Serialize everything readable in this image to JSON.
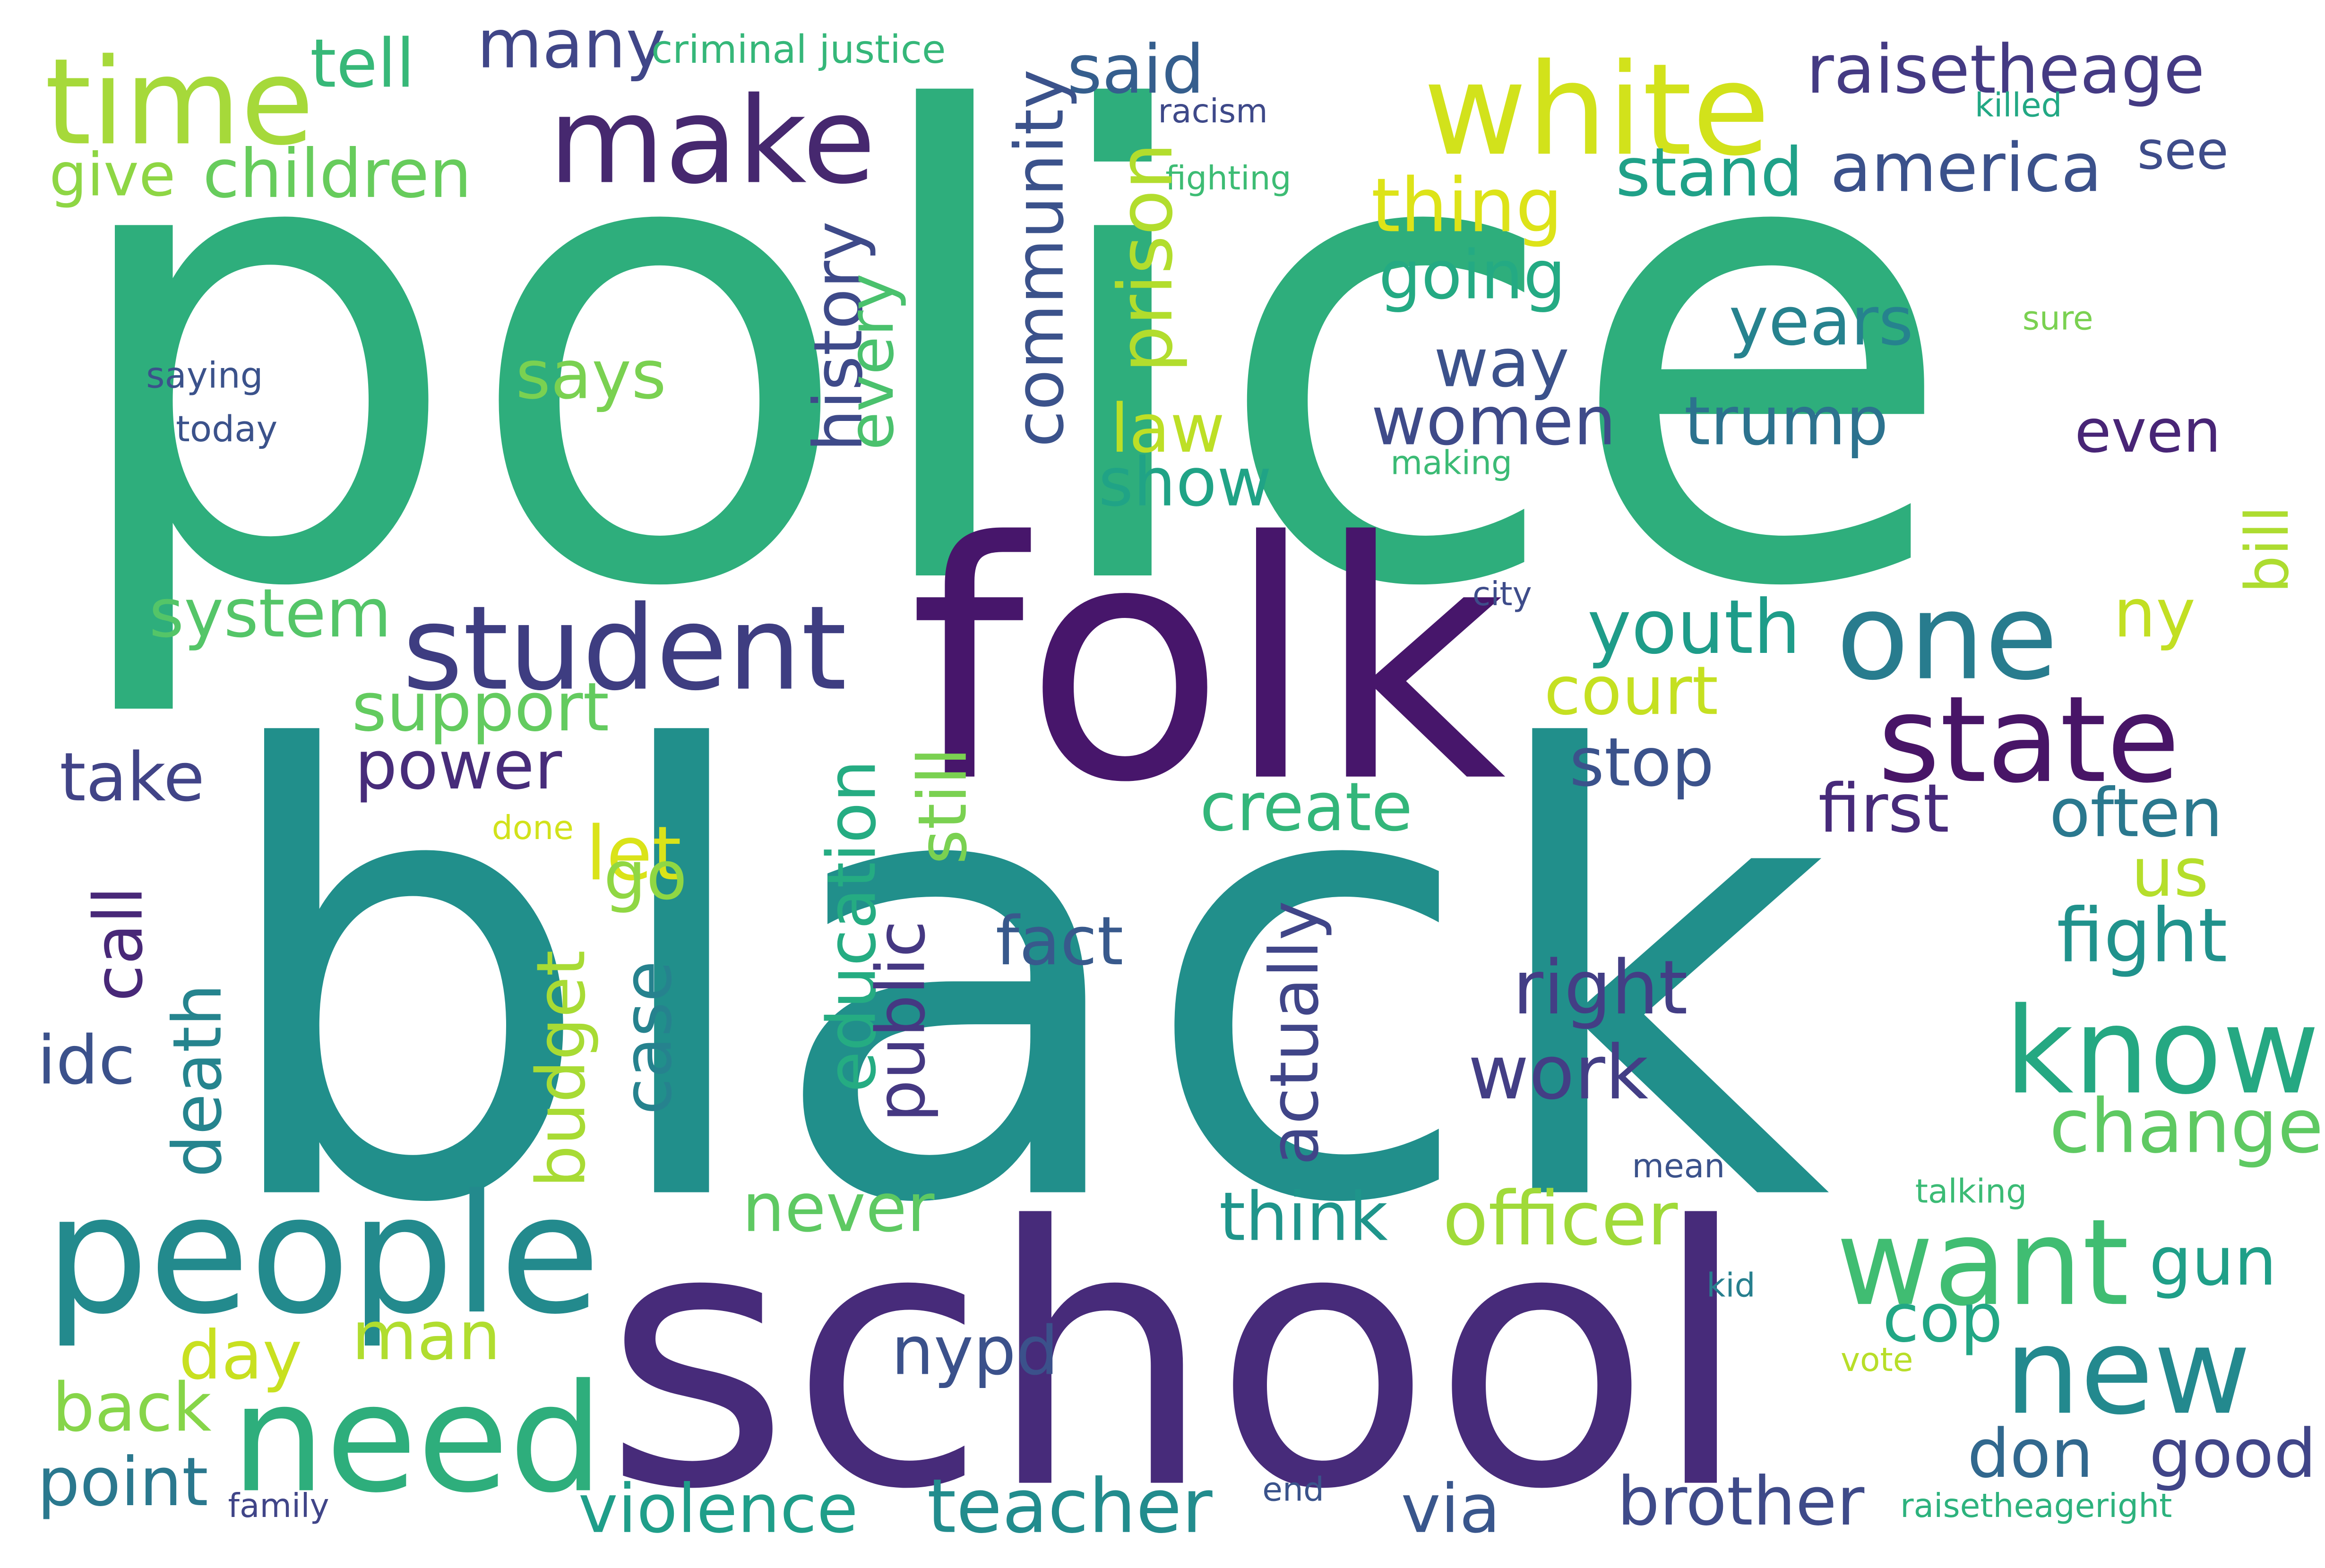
{
  "words": [
    {
      "text": "police",
      "color": "#2eae7c"
    },
    {
      "text": "black",
      "color": "#218f8b"
    },
    {
      "text": "folk",
      "color": "#47166b"
    },
    {
      "text": "school",
      "color": "#472b7a"
    },
    {
      "text": "people",
      "color": "#238a8d"
    },
    {
      "text": "need",
      "color": "#2eae7c"
    },
    {
      "text": "student",
      "color": "#3e3d81"
    },
    {
      "text": "make",
      "color": "#46286f"
    },
    {
      "text": "time",
      "color": "#a6d93a"
    },
    {
      "text": "white",
      "color": "#d2e21b"
    },
    {
      "text": "state",
      "color": "#481567"
    },
    {
      "text": "one",
      "color": "#287c8e"
    },
    {
      "text": "know",
      "color": "#25a882"
    },
    {
      "text": "want",
      "color": "#40bd72"
    },
    {
      "text": "new",
      "color": "#23898e"
    },
    {
      "text": "raisetheage",
      "color": "#443a83"
    },
    {
      "text": "america",
      "color": "#3b518b"
    },
    {
      "text": "said",
      "color": "#355e8d"
    },
    {
      "text": "many",
      "color": "#404688"
    },
    {
      "text": "tell",
      "color": "#37b878"
    },
    {
      "text": "children",
      "color": "#67cc5c"
    },
    {
      "text": "give",
      "color": "#8ed644"
    },
    {
      "text": "criminal justice",
      "color": "#35b779"
    },
    {
      "text": "racism",
      "color": "#3e4989"
    },
    {
      "text": "killed",
      "color": "#22a884"
    },
    {
      "text": "fighting",
      "color": "#3dbc74"
    },
    {
      "text": "see",
      "color": "#3e4c8a"
    },
    {
      "text": "stand",
      "color": "#1fa188"
    },
    {
      "text": "thing",
      "color": "#dde318"
    },
    {
      "text": "going",
      "color": "#24aa83"
    },
    {
      "text": "years",
      "color": "#26828e"
    },
    {
      "text": "sure",
      "color": "#7ad151"
    },
    {
      "text": "way",
      "color": "#3b518b"
    },
    {
      "text": "trump",
      "color": "#2c728e"
    },
    {
      "text": "women",
      "color": "#3e4a89"
    },
    {
      "text": "even",
      "color": "#482576"
    },
    {
      "text": "making",
      "color": "#3bbb75"
    },
    {
      "text": "law",
      "color": "#bddf26"
    },
    {
      "text": "show",
      "color": "#20a386"
    },
    {
      "text": "says",
      "color": "#7ad151"
    },
    {
      "text": "saying",
      "color": "#3b528b"
    },
    {
      "text": "today",
      "color": "#3b528b"
    },
    {
      "text": "system",
      "color": "#54c568"
    },
    {
      "text": "youth",
      "color": "#1e9c89"
    },
    {
      "text": "ny",
      "color": "#c2df23"
    },
    {
      "text": "city",
      "color": "#3e4c8a"
    },
    {
      "text": "support",
      "color": "#63cb5f"
    },
    {
      "text": "court",
      "color": "#c5e021"
    },
    {
      "text": "power",
      "color": "#472c7a"
    },
    {
      "text": "take",
      "color": "#414487"
    },
    {
      "text": "stop",
      "color": "#3b528b"
    },
    {
      "text": "create",
      "color": "#33b67a"
    },
    {
      "text": "first",
      "color": "#472a7a"
    },
    {
      "text": "often",
      "color": "#2a788e"
    },
    {
      "text": "let",
      "color": "#dae319"
    },
    {
      "text": "go",
      "color": "#90d743"
    },
    {
      "text": "done",
      "color": "#d2e21b"
    },
    {
      "text": "us",
      "color": "#b5de2b"
    },
    {
      "text": "fact",
      "color": "#38598c"
    },
    {
      "text": "fight",
      "color": "#20928c"
    },
    {
      "text": "right",
      "color": "#433e85"
    },
    {
      "text": "work",
      "color": "#433e85"
    },
    {
      "text": "idc",
      "color": "#3b518b"
    },
    {
      "text": "change",
      "color": "#5ec962"
    },
    {
      "text": "mean",
      "color": "#3b528b"
    },
    {
      "text": "talking",
      "color": "#3bbb75"
    },
    {
      "text": "never",
      "color": "#5ec962"
    },
    {
      "text": "think",
      "color": "#1f958b"
    },
    {
      "text": "officer",
      "color": "#a0da39"
    },
    {
      "text": "gun",
      "color": "#1f9f88"
    },
    {
      "text": "cop",
      "color": "#22a785"
    },
    {
      "text": "kid",
      "color": "#277f8e"
    },
    {
      "text": "day",
      "color": "#c8e020"
    },
    {
      "text": "man",
      "color": "#b0dd2f"
    },
    {
      "text": "nypd",
      "color": "#3b518b"
    },
    {
      "text": "back",
      "color": "#86d549"
    },
    {
      "text": "vote",
      "color": "#b8de29"
    },
    {
      "text": "don",
      "color": "#31688e"
    },
    {
      "text": "good",
      "color": "#404588"
    },
    {
      "text": "point",
      "color": "#2a788e"
    },
    {
      "text": "family",
      "color": "#404588"
    },
    {
      "text": "violence",
      "color": "#1f9e89"
    },
    {
      "text": "teacher",
      "color": "#228c8d"
    },
    {
      "text": "via",
      "color": "#39568c"
    },
    {
      "text": "end",
      "color": "#3a538b"
    },
    {
      "text": "brother",
      "color": "#3e4a89"
    },
    {
      "text": "raisetheageright",
      "color": "#2db27d"
    },
    {
      "text": "community",
      "color": "#3b528b"
    },
    {
      "text": "history",
      "color": "#3e4a89"
    },
    {
      "text": "every",
      "color": "#4ac16d"
    },
    {
      "text": "prison",
      "color": "#b2dd2d"
    },
    {
      "text": "bill",
      "color": "#addc30"
    },
    {
      "text": "education",
      "color": "#25ac82"
    },
    {
      "text": "public",
      "color": "#453882"
    },
    {
      "text": "still",
      "color": "#7ad151"
    },
    {
      "text": "call",
      "color": "#482878"
    },
    {
      "text": "death",
      "color": "#25848e"
    },
    {
      "text": "budget",
      "color": "#a8db34"
    },
    {
      "text": "case",
      "color": "#26828e"
    },
    {
      "text": "actually",
      "color": "#404588"
    }
  ]
}
